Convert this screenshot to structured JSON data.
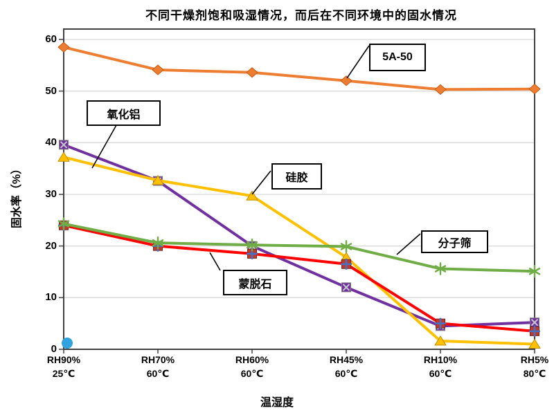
{
  "page": {
    "background": "#FFFFFF"
  },
  "chart_data": {
    "type": "line",
    "title": "不同干燥剂饱和吸湿情况，而后在不同环境中的固水情况",
    "xlabel": "温湿度",
    "ylabel": "固水率（%）",
    "ylim": [
      0,
      60
    ],
    "ytick_interval": 10,
    "grid": "horizontal-light-gray",
    "legend": "callout-boxes-on-plot",
    "ytick_labels": [
      "60",
      "50",
      "40",
      "30",
      "20",
      "10",
      "0"
    ],
    "categories": [
      {
        "rh": "RH90%",
        "temp": "25℃"
      },
      {
        "rh": "RH70%",
        "temp": "60℃"
      },
      {
        "rh": "RH60%",
        "temp": "60℃"
      },
      {
        "rh": "RH45%",
        "temp": "60℃"
      },
      {
        "rh": "RH10%",
        "temp": "60℃"
      },
      {
        "rh": "RH5%",
        "temp": "80℃"
      }
    ],
    "series": [
      {
        "name": "氧化铝",
        "color": "#7030A0",
        "marker": "x-square",
        "marker_fill": "#7030A0",
        "marker_accent": "#C9C9C9",
        "values": [
          39.6,
          32.6,
          20.0,
          12.0,
          4.5,
          5.2
        ]
      },
      {
        "name": "硅胶",
        "color": "#FFC000",
        "marker": "triangle",
        "marker_fill": "#FFC000",
        "marker_accent": "#BF9000",
        "values": [
          37.2,
          32.7,
          29.7,
          17.8,
          1.6,
          1.0
        ]
      },
      {
        "name": "蒙脱石",
        "color": "#FF0000",
        "marker": "square-plus",
        "marker_fill": "#C0392B",
        "marker_accent": "#4472C4",
        "values": [
          24.0,
          20.0,
          18.5,
          16.5,
          5.0,
          3.5
        ]
      },
      {
        "name": "分子筛",
        "color": "#70AD47",
        "marker": "asterisk",
        "marker_fill": "#70AD47",
        "marker_accent": "#70AD47",
        "values": [
          24.3,
          20.6,
          20.2,
          19.9,
          15.6,
          15.1
        ]
      },
      {
        "name": "5A-50",
        "color": "#ED7D31",
        "marker": "diamond",
        "marker_fill": "#ED7D31",
        "marker_accent": "#C55A11",
        "values": [
          58.5,
          54.1,
          53.6,
          52.0,
          50.3,
          50.4
        ]
      }
    ],
    "extra_point": {
      "category_index": 0,
      "value": 1.2,
      "color": "#2FA3DF",
      "marker": "circle"
    },
    "colors": {
      "gridline": "#D9D9D9",
      "axis": "#404040",
      "callout": "#000000"
    }
  }
}
